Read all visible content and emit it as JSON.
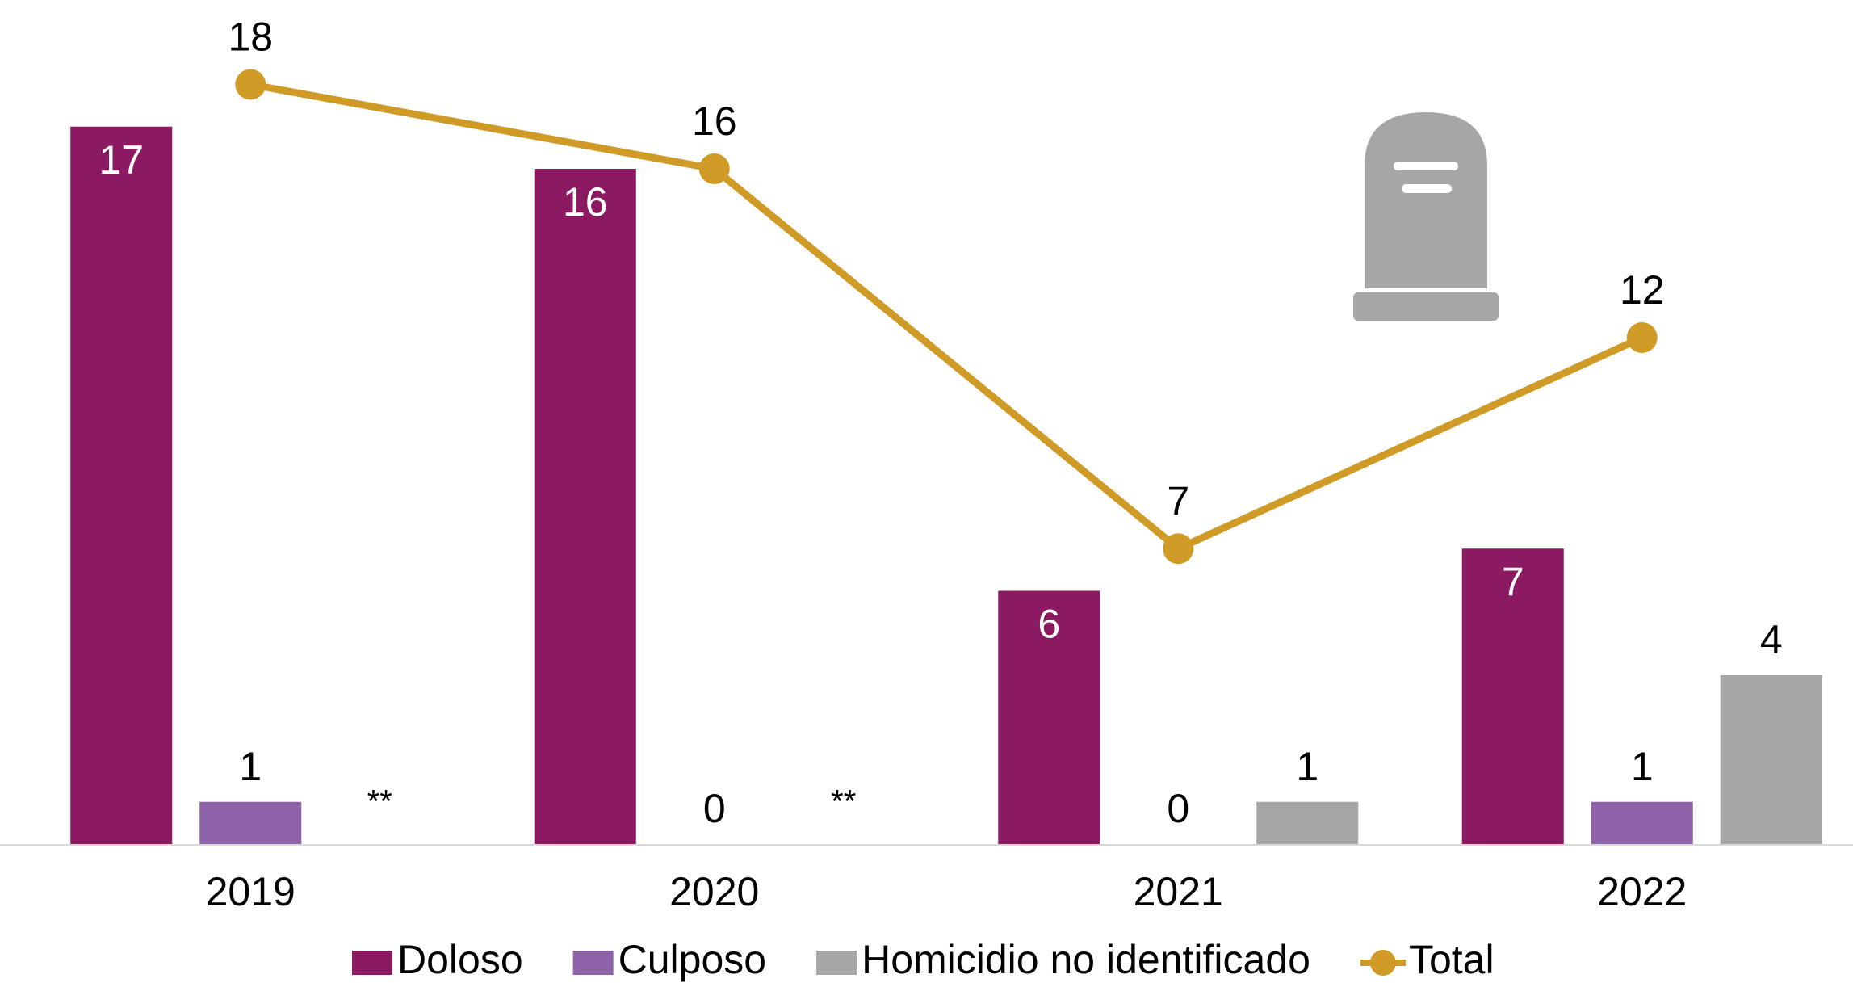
{
  "chart_data": {
    "type": "bar_line",
    "categories": [
      "2019",
      "2020",
      "2021",
      "2022"
    ],
    "ylim": [
      0,
      20
    ],
    "series": [
      {
        "name": "Doloso",
        "color": "#8b1a62",
        "type": "bar",
        "values": [
          17,
          16,
          6,
          7
        ]
      },
      {
        "name": "Culposo",
        "color": "#8e62a8",
        "type": "bar",
        "values": [
          1,
          0,
          0,
          1
        ]
      },
      {
        "name": "Homicidio no identificado",
        "color": "#a6a6a6",
        "type": "bar",
        "values": [
          null,
          null,
          1,
          4
        ],
        "value_labels": [
          "**",
          "**",
          "1",
          "4"
        ]
      },
      {
        "name": "Total",
        "color": "#d09a26",
        "type": "line",
        "values": [
          18,
          16,
          7,
          12
        ]
      }
    ]
  }
}
